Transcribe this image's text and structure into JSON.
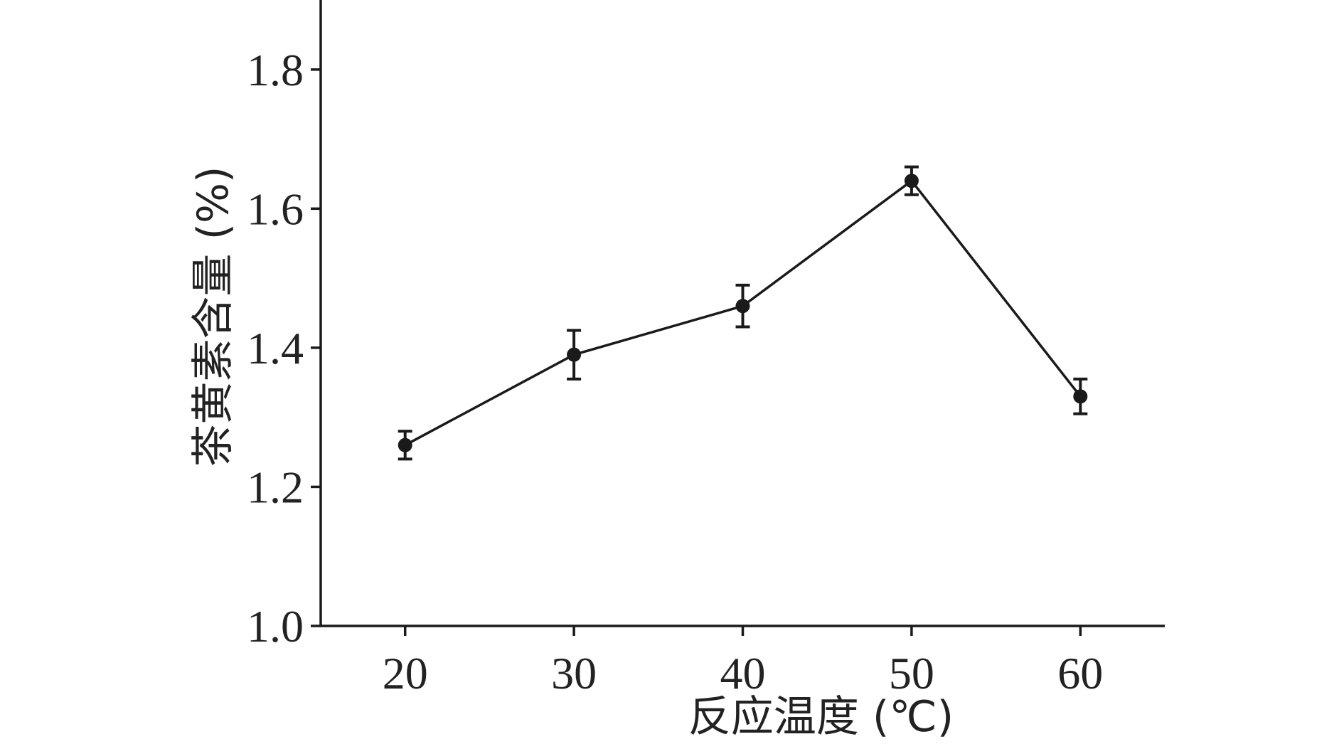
{
  "chart_data": {
    "type": "line",
    "title": "",
    "xlabel": "反应温度 (℃)",
    "ylabel": "茶黄素含量 (%)",
    "x": [
      20,
      30,
      40,
      50,
      60
    ],
    "xticks": [
      "20",
      "30",
      "40",
      "50",
      "60"
    ],
    "xlim": [
      15,
      65
    ],
    "ylim": [
      1.0,
      1.9
    ],
    "yticks": [
      "1.0",
      "1.2",
      "1.4",
      "1.6",
      "1.8"
    ],
    "grid": false,
    "series": [
      {
        "values": [
          1.26,
          1.39,
          1.46,
          1.64,
          1.33
        ],
        "error": [
          0.02,
          0.035,
          0.03,
          0.02,
          0.025
        ],
        "color": "#1a1a1a"
      }
    ]
  }
}
